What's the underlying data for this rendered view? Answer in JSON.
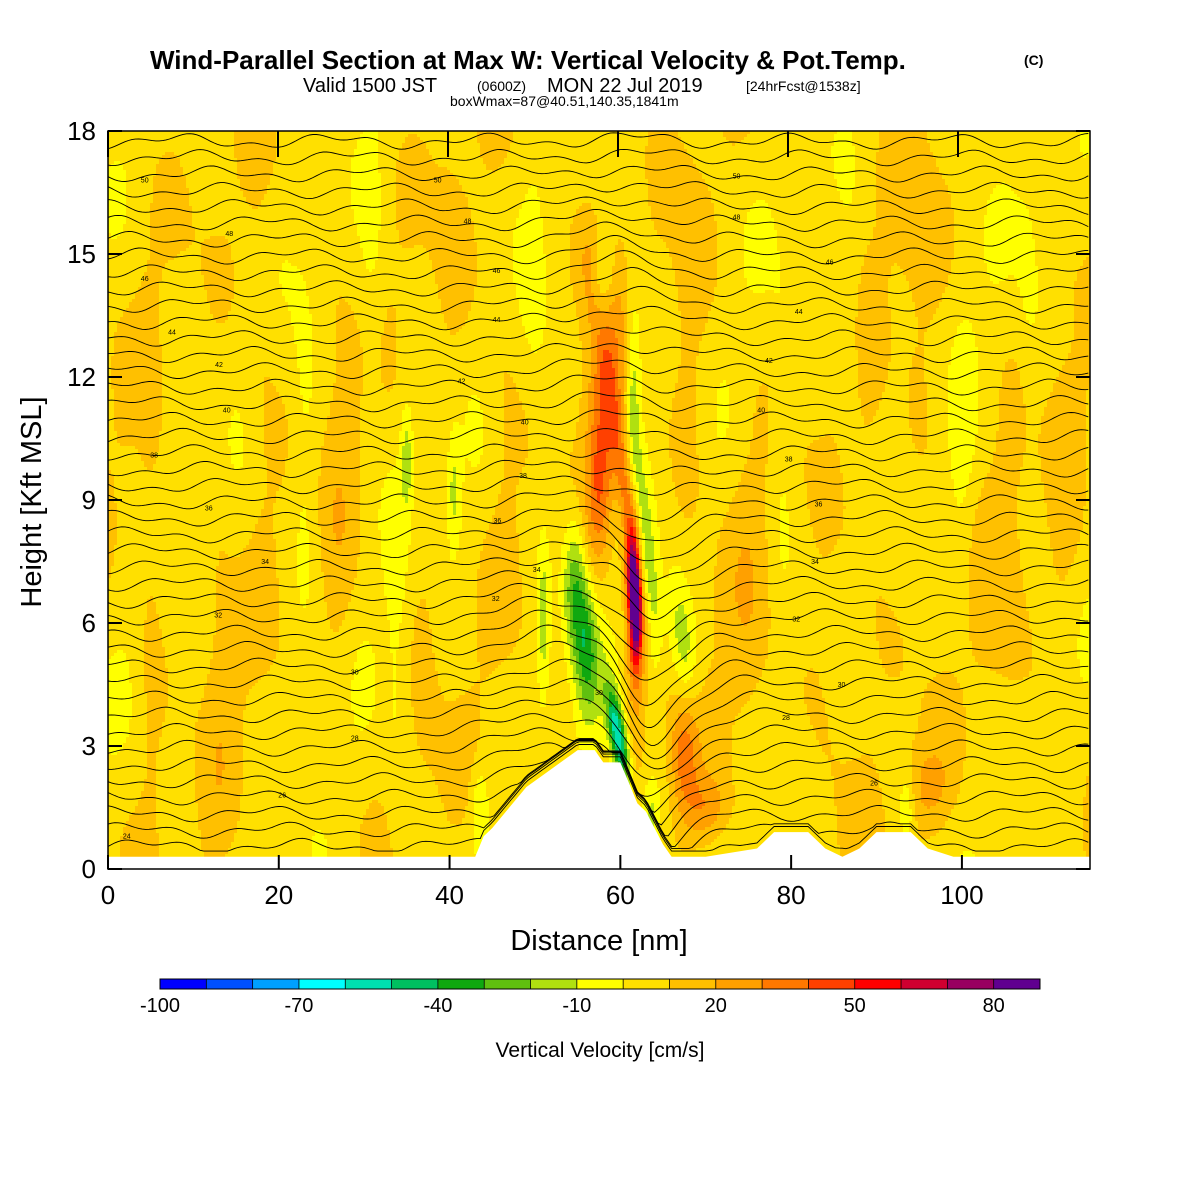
{
  "title": {
    "main": "Wind-Parallel Section at Max W: Vertical Velocity & Pot.Temp.",
    "copyright": "(C)",
    "line2_a": "Valid 1500 JST",
    "line2_b": "(0600Z)",
    "line2_c": "MON 22 Jul 2019",
    "line2_d": "[24hrFcst@1538z]",
    "line3": "boxWmax=87@40.51,140.35,1841m"
  },
  "chart_data": {
    "type": "heatmap",
    "title": "Wind-Parallel Section at Max W: Vertical Velocity & Pot.Temp.",
    "xlabel": "Distance [nm]",
    "ylabel": "Height [Kft MSL]",
    "xlim": [
      0,
      115
    ],
    "ylim": [
      0,
      18
    ],
    "xticks": [
      0,
      20,
      40,
      60,
      80,
      100
    ],
    "xtick_labels": [
      "0",
      "20",
      "40",
      "60",
      "80",
      "100"
    ],
    "yticks": [
      0,
      3,
      6,
      9,
      12,
      15,
      18
    ],
    "ytick_labels": [
      "0",
      "3",
      "6",
      "9",
      "12",
      "15",
      "18"
    ],
    "colorbar": {
      "title": "Vertical Velocity [cm/s]",
      "min": -100,
      "max": 90,
      "step": 10,
      "colors": [
        "#0000ff",
        "#0050ff",
        "#00a0ff",
        "#00ffff",
        "#00e0b0",
        "#00c060",
        "#10a810",
        "#60c010",
        "#b0e010",
        "#ffff00",
        "#ffe000",
        "#ffc000",
        "#ffa000",
        "#ff7800",
        "#ff4000",
        "#ff0000",
        "#d00030",
        "#980060",
        "#600090"
      ],
      "labels": [
        "-100",
        "-70",
        "-40",
        "-10",
        "20",
        "50",
        "80"
      ],
      "label_values": [
        -100,
        -70,
        -40,
        -10,
        20,
        50,
        80
      ]
    },
    "terrain": [
      [
        0,
        0.3
      ],
      [
        43,
        0.3
      ],
      [
        44,
        0.8
      ],
      [
        45,
        1.0
      ],
      [
        47,
        1.5
      ],
      [
        49,
        2.0
      ],
      [
        51,
        2.3
      ],
      [
        53,
        2.6
      ],
      [
        55,
        2.9
      ],
      [
        57,
        2.9
      ],
      [
        58,
        2.6
      ],
      [
        60,
        2.6
      ],
      [
        61,
        2.1
      ],
      [
        62,
        1.6
      ],
      [
        63,
        1.4
      ],
      [
        64,
        1.0
      ],
      [
        65,
        0.6
      ],
      [
        66,
        0.3
      ],
      [
        70,
        0.3
      ],
      [
        76,
        0.5
      ],
      [
        78,
        0.9
      ],
      [
        82,
        0.9
      ],
      [
        84,
        0.5
      ],
      [
        86,
        0.3
      ],
      [
        88,
        0.5
      ],
      [
        90,
        0.9
      ],
      [
        94,
        0.9
      ],
      [
        96,
        0.5
      ],
      [
        99,
        0.3
      ],
      [
        115,
        0.3
      ]
    ],
    "isentropes_K_label_values": [
      "24",
      "26",
      "28",
      "30",
      "32",
      "34",
      "36",
      "38",
      "40",
      "42",
      "44",
      "46",
      "48",
      "50"
    ],
    "isentrope_labels": [
      {
        "text": "50",
        "x": 4.3,
        "y": 16.8
      },
      {
        "text": "50",
        "x": 38.6,
        "y": 16.8
      },
      {
        "text": "50",
        "x": 73.6,
        "y": 16.9
      },
      {
        "text": "48",
        "x": 14.2,
        "y": 15.5
      },
      {
        "text": "48",
        "x": 42.1,
        "y": 15.8
      },
      {
        "text": "48",
        "x": 73.6,
        "y": 15.9
      },
      {
        "text": "46",
        "x": 4.3,
        "y": 14.4
      },
      {
        "text": "46",
        "x": 45.5,
        "y": 14.6
      },
      {
        "text": "46",
        "x": 84.5,
        "y": 14.8
      },
      {
        "text": "44",
        "x": 7.5,
        "y": 13.1
      },
      {
        "text": "44",
        "x": 45.5,
        "y": 13.4
      },
      {
        "text": "44",
        "x": 80.9,
        "y": 13.6
      },
      {
        "text": "42",
        "x": 13.0,
        "y": 12.3
      },
      {
        "text": "42",
        "x": 41.4,
        "y": 11.9
      },
      {
        "text": "42",
        "x": 77.4,
        "y": 12.4
      },
      {
        "text": "40",
        "x": 13.9,
        "y": 11.2
      },
      {
        "text": "40",
        "x": 48.8,
        "y": 10.9
      },
      {
        "text": "40",
        "x": 76.5,
        "y": 11.2
      },
      {
        "text": "38",
        "x": 5.4,
        "y": 10.1
      },
      {
        "text": "38",
        "x": 48.6,
        "y": 9.6
      },
      {
        "text": "38",
        "x": 79.7,
        "y": 10.0
      },
      {
        "text": "36",
        "x": 11.8,
        "y": 8.8
      },
      {
        "text": "36",
        "x": 45.6,
        "y": 8.5
      },
      {
        "text": "36",
        "x": 83.2,
        "y": 8.9
      },
      {
        "text": "34",
        "x": 18.4,
        "y": 7.5
      },
      {
        "text": "34",
        "x": 50.2,
        "y": 7.3
      },
      {
        "text": "34",
        "x": 82.8,
        "y": 7.5
      },
      {
        "text": "32",
        "x": 12.9,
        "y": 6.2
      },
      {
        "text": "32",
        "x": 45.4,
        "y": 6.6
      },
      {
        "text": "32",
        "x": 80.6,
        "y": 6.1
      },
      {
        "text": "30",
        "x": 28.9,
        "y": 4.8
      },
      {
        "text": "30",
        "x": 57.5,
        "y": 4.3
      },
      {
        "text": "30",
        "x": 85.9,
        "y": 4.5
      },
      {
        "text": "28",
        "x": 28.9,
        "y": 3.2
      },
      {
        "text": "28",
        "x": 79.4,
        "y": 3.7
      },
      {
        "text": "26",
        "x": 20.4,
        "y": 1.8
      },
      {
        "text": "26",
        "x": 89.7,
        "y": 2.1
      },
      {
        "text": "24",
        "x": 2.2,
        "y": 0.8
      }
    ]
  }
}
